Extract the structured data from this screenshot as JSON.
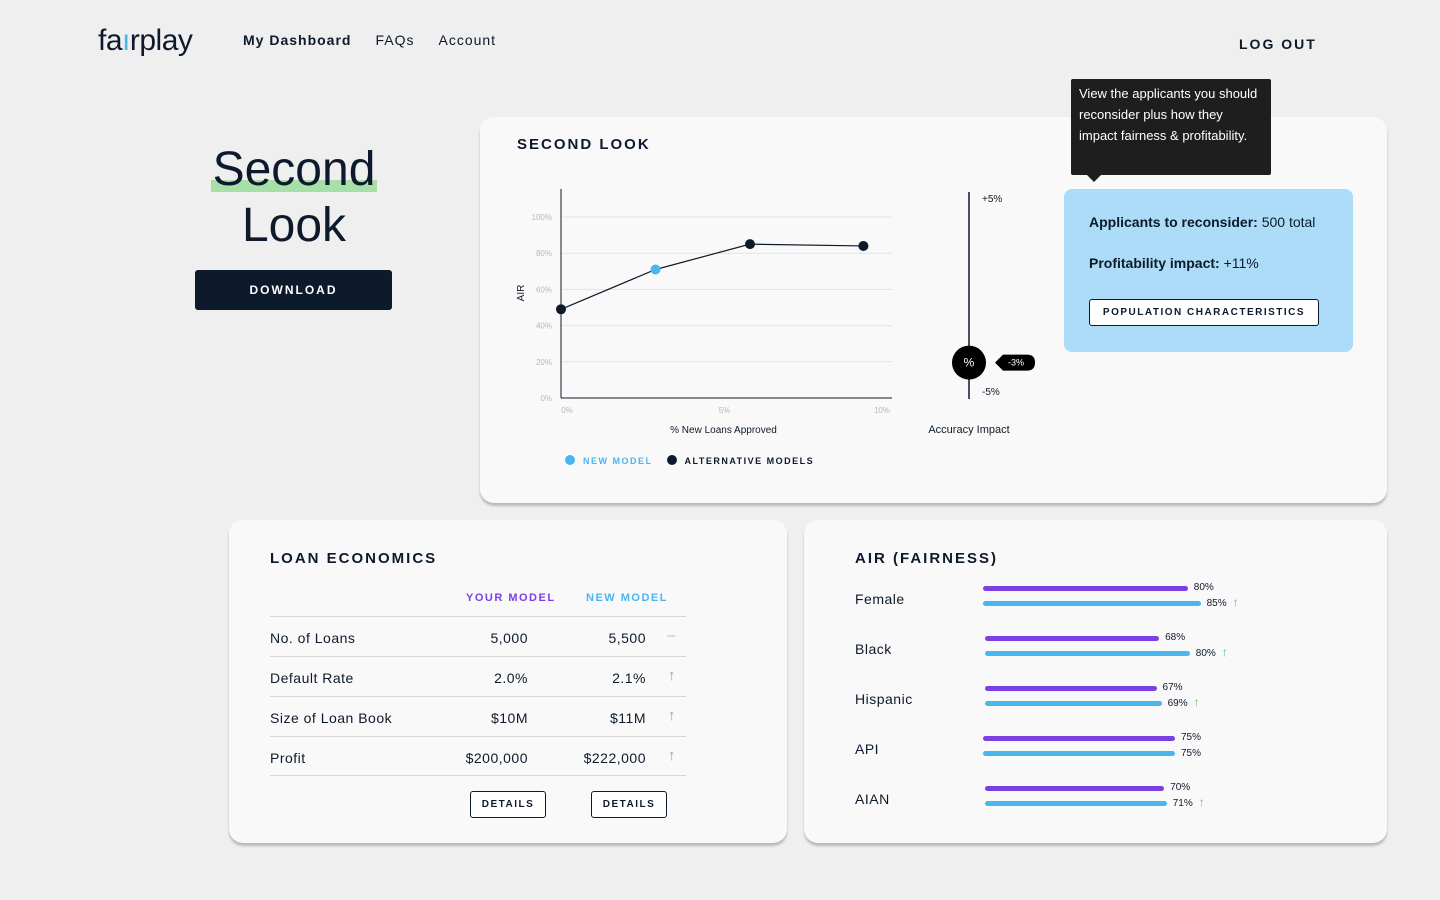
{
  "header": {
    "logo": {
      "p1": "f",
      "p2": "a",
      "p3": "ı",
      "p4": "rplay"
    },
    "nav": [
      "My Dashboard",
      "FAQs",
      "Account"
    ],
    "logout": "LOG OUT"
  },
  "page": {
    "title_line1": "Second",
    "title_line2": "Look",
    "download_label": "DOWNLOAD"
  },
  "second_look": {
    "title": "SECOND LOOK",
    "tooltip": "View the applicants you should reconsider plus how they impact fairness & profitability.",
    "info": {
      "applicants_label": "Applicants to reconsider:",
      "applicants_value": "500 total",
      "profit_label": "Profitability impact:",
      "profit_value": "+11%",
      "button": "POPULATION CHARACTERISTICS"
    },
    "legend": {
      "new": "NEW MODEL",
      "alt": "ALTERNATIVE MODELS"
    },
    "accuracy": {
      "label": "Accuracy Impact",
      "top": "+5%",
      "bottom": "-5%",
      "marker": "%",
      "value": "-3%",
      "value_num": -3,
      "range": [
        -5,
        5
      ]
    }
  },
  "chart_data": {
    "type": "line",
    "xlabel": "% New Loans Approved",
    "ylabel": "AIR",
    "x_ticks": [
      "0%",
      "5%",
      "10%"
    ],
    "y_ticks": [
      "0%",
      "20%",
      "40%",
      "60%",
      "80%",
      "100%"
    ],
    "xlim": [
      0,
      10
    ],
    "ylim": [
      0,
      100
    ],
    "grid": true,
    "series": [
      {
        "name": "NEW MODEL",
        "points": [
          [
            3,
            71
          ]
        ],
        "color": "#4ab6ee"
      },
      {
        "name": "ALTERNATIVE MODELS",
        "points": [
          [
            0,
            49
          ],
          [
            6,
            85
          ],
          [
            9.6,
            84
          ]
        ],
        "color": "#0d1a2b"
      }
    ],
    "line_order": [
      [
        0,
        49
      ],
      [
        3,
        71
      ],
      [
        6,
        85
      ],
      [
        9.6,
        84
      ]
    ]
  },
  "loan_economics": {
    "title": "LOAN ECONOMICS",
    "col_your": "YOUR MODEL",
    "col_new": "NEW MODEL",
    "rows": [
      {
        "label": "No. of Loans",
        "your": "5,000",
        "new": "5,500",
        "ind": "–",
        "type": "same"
      },
      {
        "label": "Default Rate",
        "your": "2.0%",
        "new": "2.1%",
        "ind": "↑",
        "type": "up"
      },
      {
        "label": "Size of Loan Book",
        "your": "$10M",
        "new": "$11M",
        "ind": "↑",
        "type": "up"
      },
      {
        "label": "Profit",
        "your": "$200,000",
        "new": "$222,000",
        "ind": "↑",
        "type": "up"
      }
    ],
    "details": "DETAILS"
  },
  "air": {
    "title": "AIR (FAIRNESS)",
    "rows": [
      {
        "label": "Female",
        "your": 80,
        "your_label": "80%",
        "new": 85,
        "new_label": "85%",
        "up": true
      },
      {
        "label": "Black",
        "your": 68,
        "your_label": "68%",
        "new": 80,
        "new_label": "80%",
        "up": true
      },
      {
        "label": "Hispanic",
        "your": 67,
        "your_label": "67%",
        "new": 69,
        "new_label": "69%",
        "up": true
      },
      {
        "label": "API",
        "your": 75,
        "your_label": "75%",
        "new": 75,
        "new_label": "75%",
        "up": false
      },
      {
        "label": "AIAN",
        "your": 70,
        "your_label": "70%",
        "new": 71,
        "new_label": "71%",
        "up": true
      }
    ],
    "up_icon": "↑"
  },
  "colors": {
    "navy": "#0d1a2b",
    "blue": "#4ab6ee",
    "purple": "#7b3fe4",
    "green": "#5fc46a",
    "infobox": "#acdcf7"
  }
}
